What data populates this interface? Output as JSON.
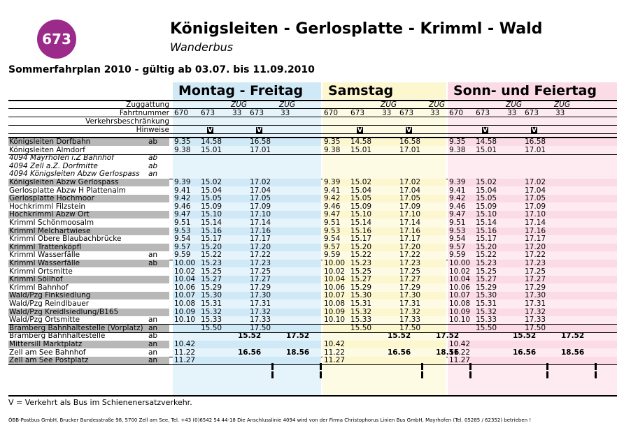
{
  "route_number": "673",
  "title": "Königsleiten - Gerlosplatte - Krimml - Wald",
  "subtitle": "Wanderbus",
  "validity": "Sommerfahrplan 2010 - gültig ab 03.07. bis 11.09.2010",
  "colors": {
    "badge": "#9b2a8b",
    "weekday": "#cfe9f7",
    "saturday": "#fdf7d0",
    "sunday": "#fbdbe6",
    "gray_row": "#b8b8b8"
  },
  "day_groups": [
    {
      "label": "Montag - Freitag",
      "background": "#cfe9f7"
    },
    {
      "label": "Samstag",
      "background": "#fdf7d0"
    },
    {
      "label": "Sonn- und Feiertag",
      "background": "#fbdbe6"
    }
  ],
  "header_labels": {
    "zuggattung": "Zuggattung",
    "fahrtnummer": "Fahrtnummer",
    "verkehrsbeschraenkung": "Verkehrsbeschränkung",
    "hinweise": "Hinweise"
  },
  "trips": [
    {
      "number": "670",
      "type": ""
    },
    {
      "number": "673",
      "type": ""
    },
    {
      "number": "33",
      "type": "ZUG"
    },
    {
      "number": "673",
      "type": ""
    },
    {
      "number": "33",
      "type": "ZUG"
    }
  ],
  "hinweis_mark": "V",
  "stops": [
    {
      "name": "Königsleiten Dorfbahn",
      "mark": "ab",
      "gray": true,
      "times": [
        "9.35",
        "14.58",
        "",
        "16.58",
        ""
      ]
    },
    {
      "name": "Königsleiten Almdorf",
      "mark": "",
      "gray": false,
      "times": [
        "9.38",
        "15.01",
        "",
        "17.01",
        ""
      ]
    },
    {
      "name": "4094 Mayrhofen i.Z Bahnhof",
      "mark": "ab",
      "gray": false,
      "italic": true,
      "times": [
        "",
        "",
        "",
        "",
        ""
      ]
    },
    {
      "name": "4094 Zell a.Z. Dorfmitte",
      "mark": "ab",
      "gray": false,
      "italic": true,
      "times": [
        "",
        "",
        "",
        "",
        ""
      ]
    },
    {
      "name": "4094 Königsleiten Abzw Gerlospass",
      "mark": "an",
      "gray": false,
      "italic": true,
      "times": [
        "",
        "",
        "",
        "",
        ""
      ]
    },
    {
      "name": "Königsleiten Abzw Gerlospass",
      "mark": "",
      "gray": true,
      "times": [
        "9.39",
        "15.02",
        "",
        "17.02",
        ""
      ]
    },
    {
      "name": "Gerlosplatte Abzw H Plattenalm",
      "mark": "",
      "gray": false,
      "times": [
        "9.41",
        "15.04",
        "",
        "17.04",
        ""
      ]
    },
    {
      "name": "Gerlosplatte Hochmoor",
      "mark": "",
      "gray": true,
      "times": [
        "9.42",
        "15.05",
        "",
        "17.05",
        ""
      ]
    },
    {
      "name": "Hochkrimml Filzstein",
      "mark": "",
      "gray": false,
      "times": [
        "9.46",
        "15.09",
        "",
        "17.09",
        ""
      ]
    },
    {
      "name": "Hochkrimml Abzw Ort",
      "mark": "",
      "gray": true,
      "times": [
        "9.47",
        "15.10",
        "",
        "17.10",
        ""
      ]
    },
    {
      "name": "Krimml Schönmoosalm",
      "mark": "",
      "gray": false,
      "times": [
        "9.51",
        "15.14",
        "",
        "17.14",
        ""
      ]
    },
    {
      "name": "Krimml Melchartwiese",
      "mark": "",
      "gray": true,
      "times": [
        "9.53",
        "15.16",
        "",
        "17.16",
        ""
      ]
    },
    {
      "name": "Krimml Obere Blaubachbrücke",
      "mark": "",
      "gray": false,
      "times": [
        "9.54",
        "15.17",
        "",
        "17.17",
        ""
      ]
    },
    {
      "name": "Krimml Trattenköpfl",
      "mark": "",
      "gray": true,
      "times": [
        "9.57",
        "15.20",
        "",
        "17.20",
        ""
      ]
    },
    {
      "name": "Krimml Wasserfälle",
      "mark": "an",
      "gray": false,
      "times": [
        "9.59",
        "15.22",
        "",
        "17.22",
        ""
      ]
    },
    {
      "name": "Krimml Wasserfälle",
      "mark": "ab",
      "gray": true,
      "times": [
        "10.00",
        "15.23",
        "",
        "17.23",
        ""
      ]
    },
    {
      "name": "Krimml Ortsmitte",
      "mark": "",
      "gray": false,
      "times": [
        "10.02",
        "15.25",
        "",
        "17.25",
        ""
      ]
    },
    {
      "name": "Krimml Söllhof",
      "mark": "",
      "gray": true,
      "times": [
        "10.04",
        "15.27",
        "",
        "17.27",
        ""
      ]
    },
    {
      "name": "Krimml Bahnhof",
      "mark": "",
      "gray": false,
      "times": [
        "10.06",
        "15.29",
        "",
        "17.29",
        ""
      ]
    },
    {
      "name": "Wald/Pzg Finksiedlung",
      "mark": "",
      "gray": true,
      "times": [
        "10.07",
        "15.30",
        "",
        "17.30",
        ""
      ]
    },
    {
      "name": "Wald/Pzg Reindlbauer",
      "mark": "",
      "gray": false,
      "times": [
        "10.08",
        "15.31",
        "",
        "17.31",
        ""
      ]
    },
    {
      "name": "Wald/Pzg Kreidlsiedlung/B165",
      "mark": "",
      "gray": true,
      "times": [
        "10.09",
        "15.32",
        "",
        "17.32",
        ""
      ]
    },
    {
      "name": "Wald/Pzg Ortsmitte",
      "mark": "an",
      "gray": false,
      "times": [
        "10.10",
        "15.33",
        "",
        "17.33",
        ""
      ]
    },
    {
      "name": "Bramberg Bahnhaltestelle (Vorplatz)",
      "mark": "an",
      "gray": true,
      "times": [
        "",
        "15.50",
        "",
        "17.50",
        ""
      ]
    },
    {
      "name": "Bramberg Bahnhaltestelle",
      "mark": "ab",
      "gray": false,
      "times": [
        "",
        "",
        "15.52",
        "",
        "17.52"
      ]
    },
    {
      "name": "Mittersill Marktplatz",
      "mark": "an",
      "gray": true,
      "times": [
        "10.42",
        "",
        "",
        "",
        ""
      ]
    },
    {
      "name": "Zell am See Bahnhof",
      "mark": "an",
      "gray": false,
      "times": [
        "11.22",
        "",
        "16.56",
        "",
        "18.56"
      ]
    },
    {
      "name": "Zell am See Postplatz",
      "mark": "an",
      "gray": true,
      "times": [
        "11.27",
        "",
        "",
        "",
        ""
      ]
    }
  ],
  "legend": "V = Verkehrt als Bus im Schienenersatzverkehr.",
  "footer": "ÖBB-Postbus GmbH, Brucker Bundesstraße 98, 5700 Zell am See, Tel. +43 (0)6542 54 44-18 Die Anschlusslinie 4094 wird von der Firma Christophorus Linien Bus GmbH, Mayrhofen (Tel. 05285 / 62352) betrieben !"
}
